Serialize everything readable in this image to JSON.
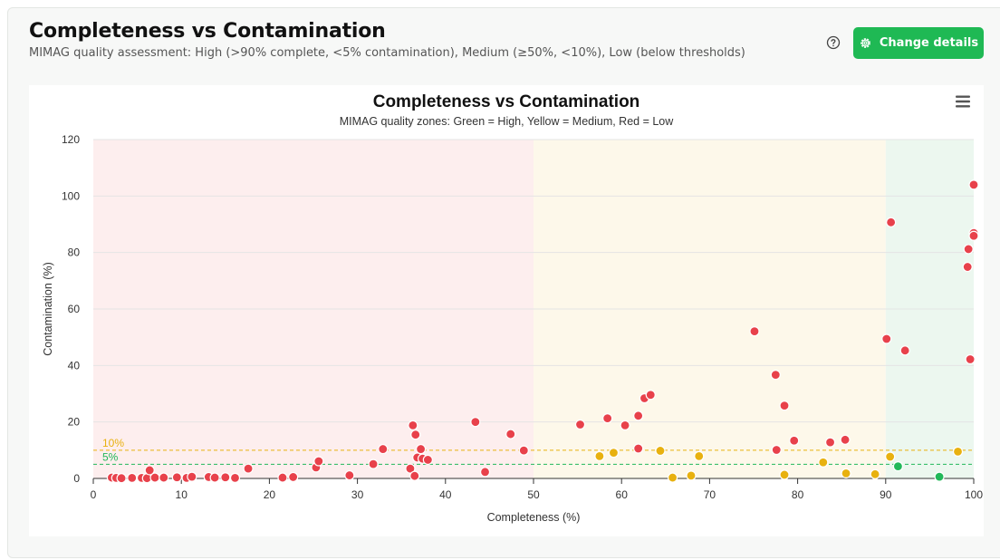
{
  "header": {
    "title": "Completeness vs Contamination",
    "subtitle": "MIMAG quality assessment: High (>90% complete, <5% contamination), Medium (≥50%, <10%), Low (below thresholds)",
    "change_button_label": "Change details",
    "help_icon": "question-circle-icon",
    "settings_icon": "gear-icon"
  },
  "colors": {
    "high": "#22b85a",
    "medium": "#e8b10f",
    "low": "#e8414b",
    "accent": "#1fb954"
  },
  "chart_data": {
    "type": "scatter",
    "title": "Completeness vs Contamination",
    "subtitle": "MIMAG quality zones: Green = High, Yellow = Medium, Red = Low",
    "xlabel": "Completeness (%)",
    "ylabel": "Contamination (%)",
    "xlim": [
      0,
      100
    ],
    "ylim": [
      0,
      120
    ],
    "xticks": [
      0,
      10,
      20,
      30,
      40,
      50,
      60,
      70,
      80,
      90,
      100
    ],
    "yticks": [
      0,
      20,
      40,
      60,
      80,
      100,
      120
    ],
    "zones": [
      {
        "name": "Low",
        "x_from": 0,
        "x_to": 50,
        "color": "#fdeeee"
      },
      {
        "name": "Medium",
        "x_from": 50,
        "x_to": 90,
        "color": "#fdf8ea"
      },
      {
        "name": "High",
        "x_from": 90,
        "x_to": 100,
        "color": "#ecf7ef"
      }
    ],
    "threshold_lines": [
      {
        "label": "10%",
        "y": 10,
        "color": "#e8b10f"
      },
      {
        "label": "5%",
        "y": 5,
        "color": "#22b85a"
      }
    ],
    "series": [
      {
        "name": "Low",
        "color": "#e8414b",
        "points": [
          [
            2.1,
            0.3
          ],
          [
            2.6,
            0.2
          ],
          [
            3.2,
            0.1
          ],
          [
            4.4,
            0.2
          ],
          [
            5.5,
            0.2
          ],
          [
            6.1,
            0.1
          ],
          [
            6.4,
            2.9
          ],
          [
            7.0,
            0.3
          ],
          [
            8.0,
            0.3
          ],
          [
            9.5,
            0.4
          ],
          [
            10.6,
            0.2
          ],
          [
            11.2,
            0.6
          ],
          [
            13.1,
            0.5
          ],
          [
            13.8,
            0.3
          ],
          [
            15.0,
            0.4
          ],
          [
            16.1,
            0.2
          ],
          [
            17.6,
            3.5
          ],
          [
            21.5,
            0.3
          ],
          [
            22.7,
            0.5
          ],
          [
            25.3,
            3.9
          ],
          [
            25.6,
            6.1
          ],
          [
            29.1,
            1.1
          ],
          [
            31.8,
            5.1
          ],
          [
            32.9,
            10.4
          ],
          [
            36.0,
            3.5
          ],
          [
            36.3,
            18.8
          ],
          [
            36.5,
            0.9
          ],
          [
            36.6,
            15.5
          ],
          [
            36.8,
            7.4
          ],
          [
            37.2,
            10.4
          ],
          [
            37.4,
            7.0
          ],
          [
            38.0,
            6.6
          ],
          [
            43.4,
            20.0
          ],
          [
            44.5,
            2.3
          ],
          [
            47.4,
            15.7
          ],
          [
            48.9,
            9.9
          ],
          [
            55.3,
            19.1
          ],
          [
            58.4,
            21.3
          ],
          [
            60.4,
            18.8
          ],
          [
            61.9,
            10.6
          ],
          [
            61.9,
            22.2
          ],
          [
            62.6,
            28.4
          ],
          [
            63.3,
            29.6
          ],
          [
            75.1,
            52.1
          ],
          [
            77.5,
            36.7
          ],
          [
            77.6,
            10.1
          ],
          [
            78.5,
            25.8
          ],
          [
            79.6,
            13.4
          ],
          [
            83.7,
            12.8
          ],
          [
            85.4,
            13.7
          ],
          [
            90.1,
            49.4
          ],
          [
            90.6,
            90.7
          ],
          [
            92.2,
            45.3
          ],
          [
            99.3,
            74.9
          ],
          [
            99.4,
            81.2
          ],
          [
            99.6,
            42.2
          ],
          [
            100.0,
            104.0
          ],
          [
            100.0,
            86.9
          ],
          [
            100.0,
            85.9
          ]
        ]
      },
      {
        "name": "Medium",
        "color": "#e8b10f",
        "points": [
          [
            57.5,
            7.9
          ],
          [
            59.1,
            9.1
          ],
          [
            64.4,
            9.8
          ],
          [
            65.8,
            0.3
          ],
          [
            67.9,
            1.0
          ],
          [
            68.8,
            7.9
          ],
          [
            78.5,
            1.3
          ],
          [
            82.9,
            5.7
          ],
          [
            85.5,
            1.8
          ],
          [
            88.8,
            1.5
          ],
          [
            90.5,
            7.7
          ],
          [
            98.2,
            9.5
          ]
        ]
      },
      {
        "name": "High",
        "color": "#22b85a",
        "points": [
          [
            91.4,
            4.3
          ],
          [
            96.1,
            0.6
          ]
        ]
      }
    ]
  }
}
